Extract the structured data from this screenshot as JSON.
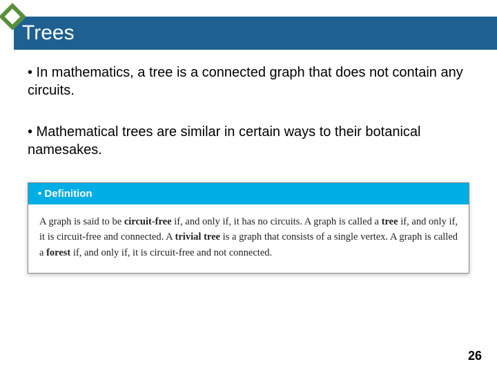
{
  "slide": {
    "title": "Trees",
    "bullets": [
      "• In mathematics, a tree is a connected graph that does not contain any circuits.",
      "• Mathematical trees are similar in certain ways to their botanical namesakes."
    ],
    "definition": {
      "header": "•  Definition",
      "body_html": "A graph is said to be <b>circuit-free</b> if, and only if, it has no circuits. A graph is called a <b>tree</b> if, and only if, it is circuit-free and connected. A <b>trivial tree</b> is a graph that consists of a single vertex. A graph is called a <b>forest</b> if, and only if, it is circuit-free and not connected."
    },
    "page_number": "26"
  },
  "colors": {
    "title_bar_bg": "#1e6091",
    "title_text": "#ffffff",
    "diamond_border": "#5a8f3a",
    "def_header_bg": "#00aee6",
    "def_header_text": "#ffffff",
    "body_text": "#000000",
    "background": "#ffffff"
  },
  "typography": {
    "title_fontsize": 30,
    "bullet_fontsize": 20,
    "def_header_fontsize": 15,
    "def_body_fontsize": 14.5,
    "page_num_fontsize": 18
  }
}
